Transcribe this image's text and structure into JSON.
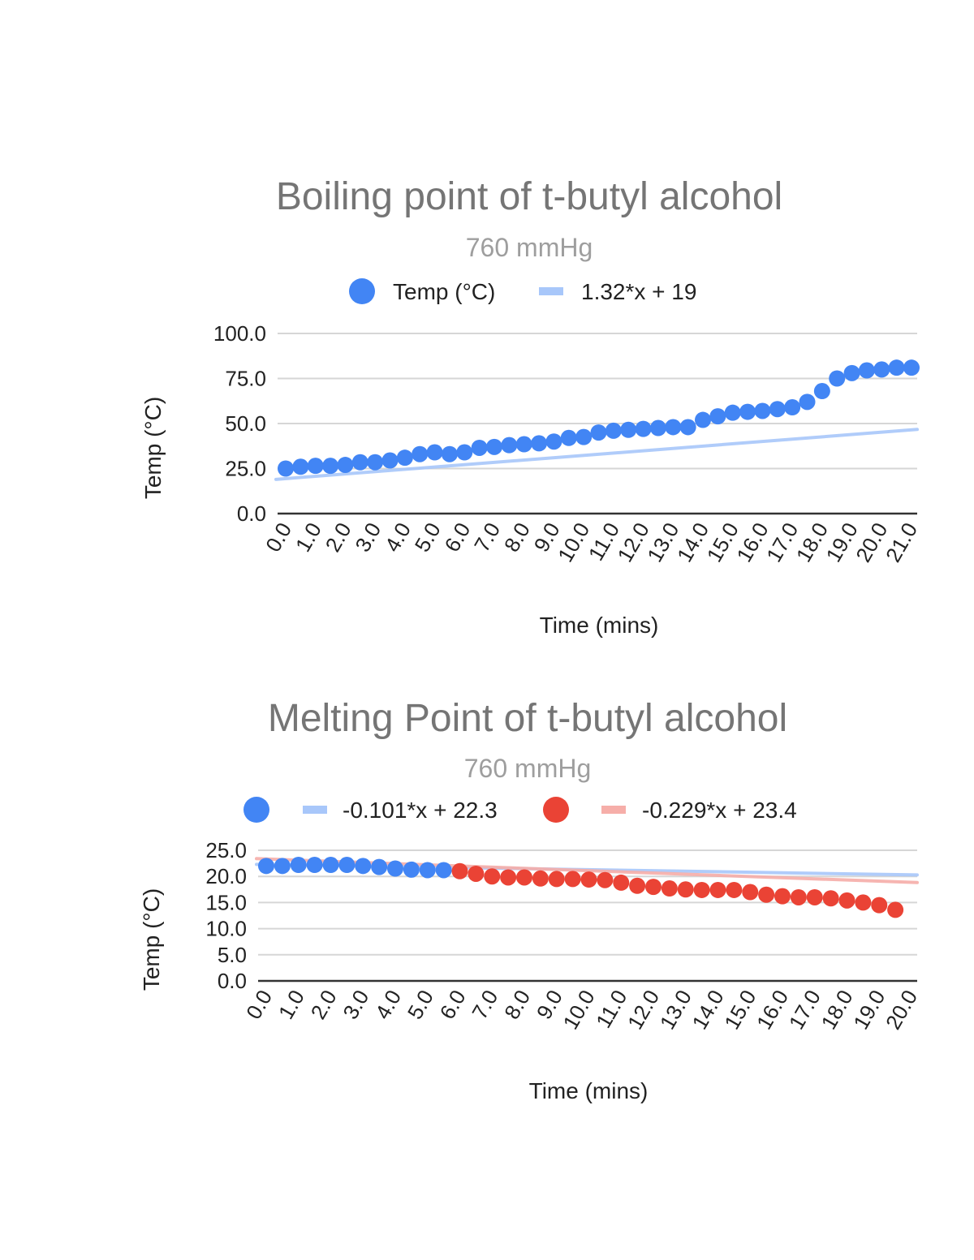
{
  "chart_data": [
    {
      "type": "scatter",
      "title": "Boiling point of t-butyl alcohol",
      "subtitle": "760 mmHg",
      "xlabel": "Time (mins)",
      "ylabel": "Temp (°C)",
      "xlim": [
        0,
        21
      ],
      "ylim": [
        0,
        100
      ],
      "yticks": [
        "0.0",
        "25.0",
        "50.0",
        "75.0",
        "100.0"
      ],
      "xticks": [
        "0.0",
        "1.0",
        "2.0",
        "3.0",
        "4.0",
        "5.0",
        "6.0",
        "7.0",
        "8.0",
        "9.0",
        "10.0",
        "11.0",
        "12.0",
        "13.0",
        "14.0",
        "15.0",
        "16.0",
        "17.0",
        "18.0",
        "19.0",
        "20.0",
        "21.0"
      ],
      "grid": true,
      "legend_position": "top",
      "series": [
        {
          "name": "Temp (°C)",
          "color": "#4285f4",
          "x": [
            0,
            0.5,
            1,
            1.5,
            2,
            2.5,
            3,
            3.5,
            4,
            4.5,
            5,
            5.5,
            6,
            6.5,
            7,
            7.5,
            8,
            8.5,
            9,
            9.5,
            10,
            10.5,
            11,
            11.5,
            12,
            12.5,
            13,
            13.5,
            14,
            14.5,
            15,
            15.5,
            16,
            16.5,
            17,
            17.5,
            18,
            18.5,
            19,
            19.5,
            20,
            20.5,
            21
          ],
          "y": [
            25,
            26,
            26.5,
            26.5,
            27,
            28.5,
            28.5,
            29.5,
            31,
            33,
            34,
            33,
            34,
            36.5,
            37,
            38,
            38.5,
            39,
            40,
            42,
            42.5,
            45,
            46,
            46.5,
            47,
            47.5,
            48,
            48,
            52,
            54,
            56,
            56.5,
            57,
            58,
            59,
            62,
            68,
            75,
            78,
            79.5,
            80,
            81,
            81
          ]
        }
      ],
      "trendlines": [
        {
          "label": "1.32*x + 19",
          "slope": 1.32,
          "intercept": 19,
          "color": "#a8c7fa"
        }
      ]
    },
    {
      "type": "scatter",
      "title": "Melting Point of t-butyl alcohol",
      "subtitle": "760 mmHg",
      "xlabel": "Time (mins)",
      "ylabel": "Temp (°C)",
      "xlim": [
        0,
        20
      ],
      "ylim": [
        0,
        25
      ],
      "yticks": [
        "0.0",
        "5.0",
        "10.0",
        "15.0",
        "20.0",
        "25.0"
      ],
      "xticks": [
        "0.0",
        "1.0",
        "2.0",
        "3.0",
        "4.0",
        "5.0",
        "6.0",
        "7.0",
        "8.0",
        "9.0",
        "10.0",
        "11.0",
        "12.0",
        "13.0",
        "14.0",
        "15.0",
        "16.0",
        "17.0",
        "18.0",
        "19.0",
        "20.0"
      ],
      "grid": true,
      "legend_position": "top",
      "series": [
        {
          "color": "#4285f4",
          "x": [
            0,
            0.5,
            1,
            1.5,
            2,
            2.5,
            3,
            3.5,
            4,
            4.5,
            5,
            5.5
          ],
          "y": [
            22,
            22,
            22.2,
            22.2,
            22.2,
            22.2,
            22,
            21.8,
            21.5,
            21.3,
            21.2,
            21.2
          ]
        },
        {
          "color": "#ea4335",
          "x": [
            6,
            6.5,
            7,
            7.5,
            8,
            8.5,
            9,
            9.5,
            10,
            10.5,
            11,
            11.5,
            12,
            12.5,
            13,
            13.5,
            14,
            14.5,
            15,
            15.5,
            16,
            16.5,
            17,
            17.5,
            18,
            18.5,
            19,
            19.5
          ],
          "y": [
            21,
            20.5,
            20,
            19.8,
            19.8,
            19.6,
            19.5,
            19.5,
            19.4,
            19.3,
            18.8,
            18.2,
            18,
            17.7,
            17.5,
            17.4,
            17.4,
            17.4,
            17,
            16.5,
            16.2,
            16,
            16,
            15.8,
            15.4,
            15,
            14.5,
            13.6
          ]
        }
      ],
      "trendlines": [
        {
          "label": "-0.101*x + 22.3",
          "slope": -0.101,
          "intercept": 22.3,
          "color": "#a8c7fa"
        },
        {
          "label": "-0.229*x + 23.4",
          "slope": -0.229,
          "intercept": 23.4,
          "color": "#f6aea9"
        }
      ]
    }
  ]
}
